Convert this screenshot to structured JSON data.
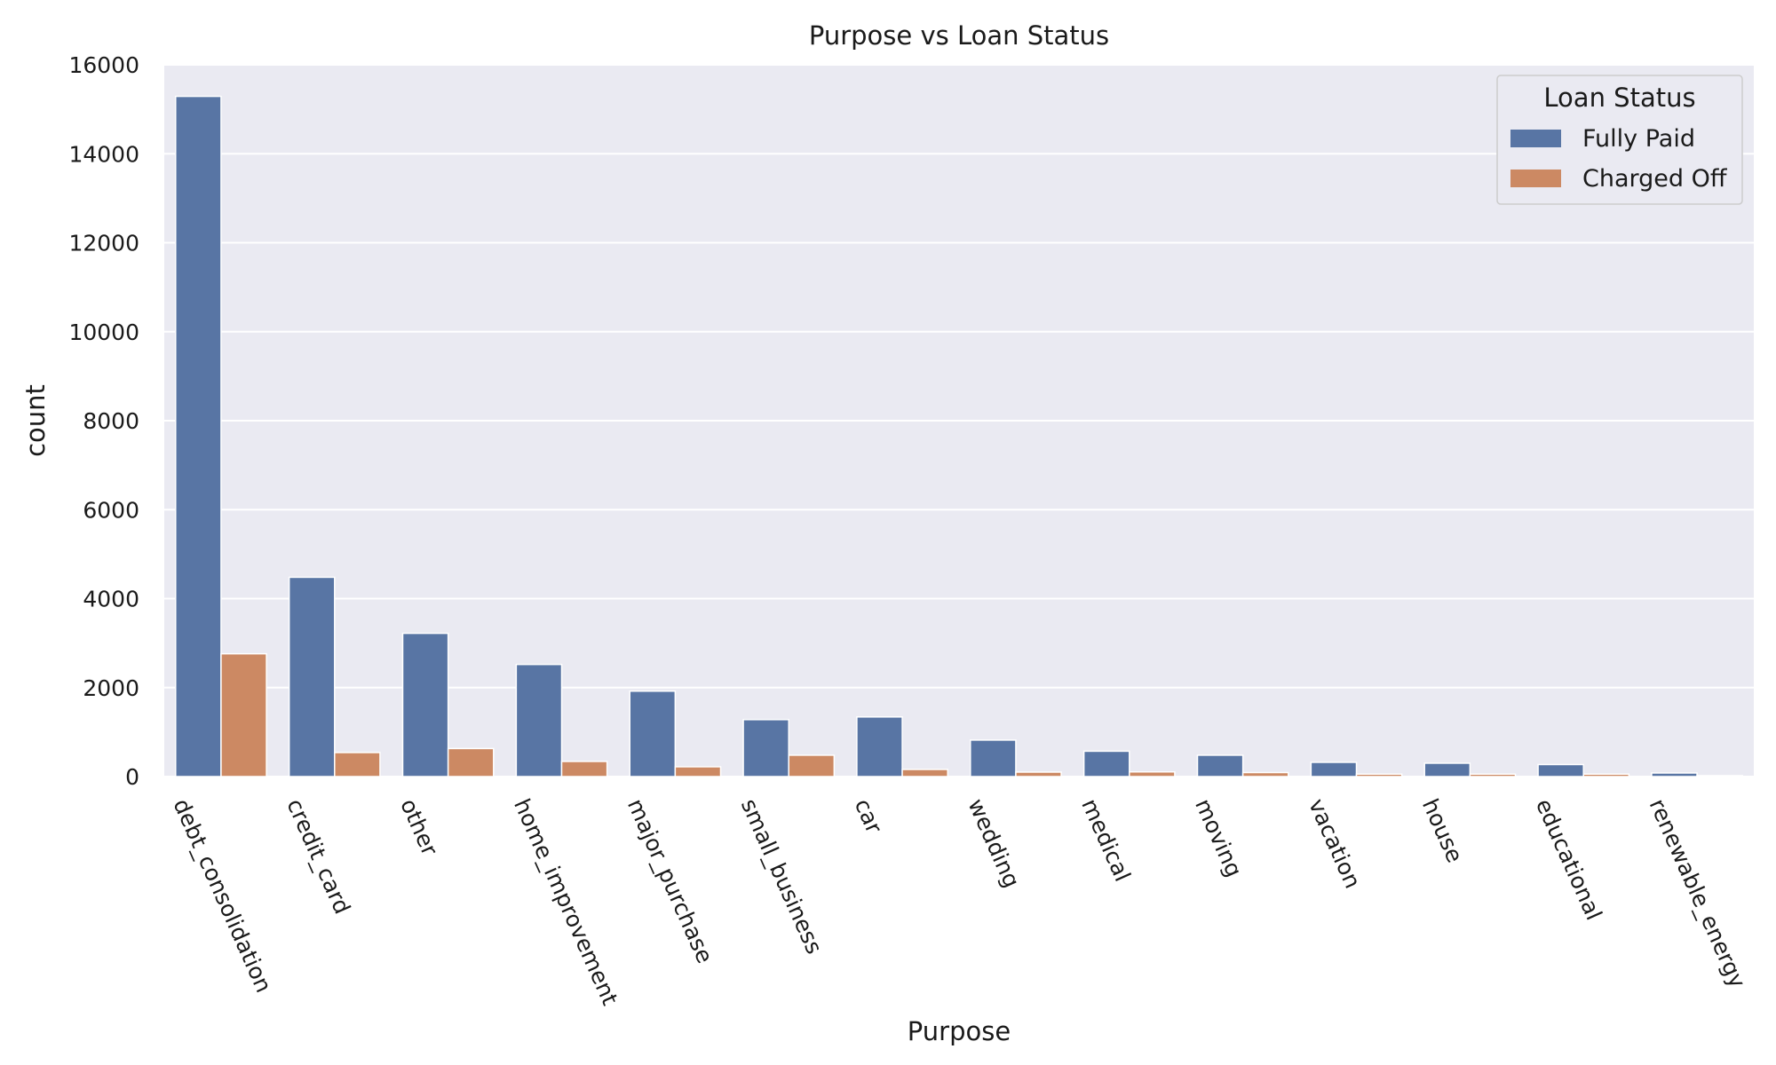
{
  "chart_data": {
    "type": "bar",
    "title": "Purpose vs Loan Status",
    "xlabel": "Purpose",
    "ylabel": "count",
    "ylim": [
      0,
      16000
    ],
    "yticks": [
      0,
      2000,
      4000,
      6000,
      8000,
      10000,
      12000,
      14000,
      16000
    ],
    "grid": true,
    "legend": {
      "title": "Loan Status",
      "placement": "top-right"
    },
    "categories": [
      "debt_consolidation",
      "credit_card",
      "other",
      "home_improvement",
      "major_purchase",
      "small_business",
      "car",
      "wedding",
      "medical",
      "moving",
      "vacation",
      "house",
      "educational",
      "renewable_energy"
    ],
    "series": [
      {
        "name": "Fully Paid",
        "color": "#5875a4",
        "values": [
          15290,
          4480,
          3220,
          2520,
          1920,
          1280,
          1340,
          820,
          570,
          480,
          320,
          300,
          270,
          80
        ]
      },
      {
        "name": "Charged Off",
        "color": "#cc8963",
        "values": [
          2760,
          540,
          630,
          340,
          220,
          480,
          160,
          100,
          105,
          90,
          55,
          55,
          55,
          20
        ]
      }
    ]
  }
}
